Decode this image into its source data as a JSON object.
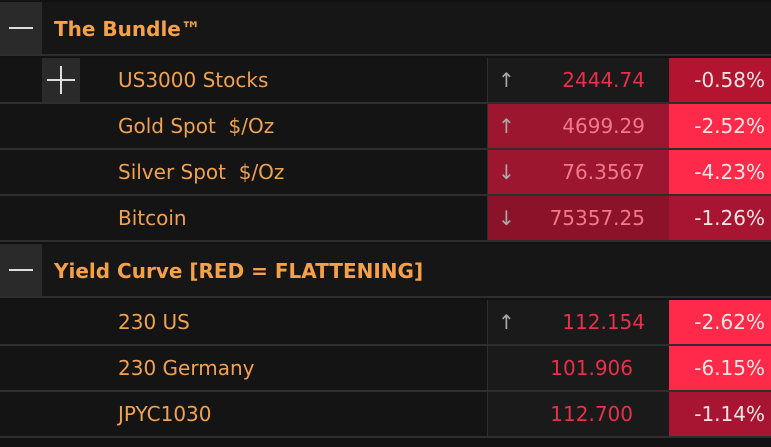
{
  "sections": [
    {
      "title": "The Bundle™",
      "rows": [
        {
          "name": "US3000 Stocks",
          "arrow": "↑",
          "price": "2444.74",
          "change": "-0.58%"
        },
        {
          "name": "Gold Spot  $/Oz",
          "arrow": "↑",
          "price": "4699.29",
          "change": "-2.52%"
        },
        {
          "name": "Silver Spot  $/Oz",
          "arrow": "↓",
          "price": "76.3567",
          "change": "-4.23%"
        },
        {
          "name": "Bitcoin",
          "arrow": "↓",
          "price": "75357.25",
          "change": "-1.26%"
        }
      ]
    },
    {
      "title": "Yield Curve [RED = FLATTENING]",
      "rows": [
        {
          "name": "230 US",
          "arrow": "↑",
          "price": "112.154",
          "change": "-2.62%"
        },
        {
          "name": "230 Germany",
          "price": "101.906",
          "change": "-6.15%"
        },
        {
          "name": "JPYC1030",
          "price": "112.700",
          "change": "-1.14%"
        }
      ]
    }
  ]
}
